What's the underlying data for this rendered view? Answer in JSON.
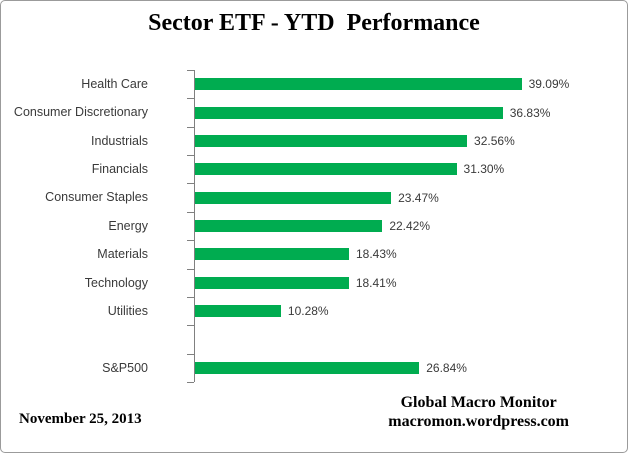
{
  "title": "Sector ETF - YTD  Performance",
  "footer": {
    "date": "November 25, 2013",
    "source_line1": "Global Macro Monitor",
    "source_line2": "macromon.wordpress.com"
  },
  "colors": {
    "bar": "#00AC50",
    "axis": "#808080",
    "label": "#3a3a3a",
    "frame_border": "#9b9b9b"
  },
  "chart_data": {
    "type": "bar",
    "orientation": "horizontal",
    "title": "Sector ETF - YTD  Performance",
    "categories": [
      "Health Care",
      "Consumer Discretionary",
      "Industrials",
      "Financials",
      "Consumer Staples",
      "Energy",
      "Materials",
      "Technology",
      "Utilities",
      "",
      "S&P500"
    ],
    "values": [
      39.09,
      36.83,
      32.56,
      31.3,
      23.47,
      22.42,
      18.43,
      18.41,
      10.28,
      null,
      26.84
    ],
    "value_labels": [
      "39.09%",
      "36.83%",
      "32.56%",
      "31.30%",
      "23.47%",
      "22.42%",
      "18.43%",
      "18.41%",
      "10.28%",
      "",
      "26.84%"
    ],
    "xlabel": "",
    "ylabel": "",
    "xlim": [
      0,
      45
    ],
    "grid": false,
    "legend": false,
    "bar_color": "#00AC50"
  }
}
